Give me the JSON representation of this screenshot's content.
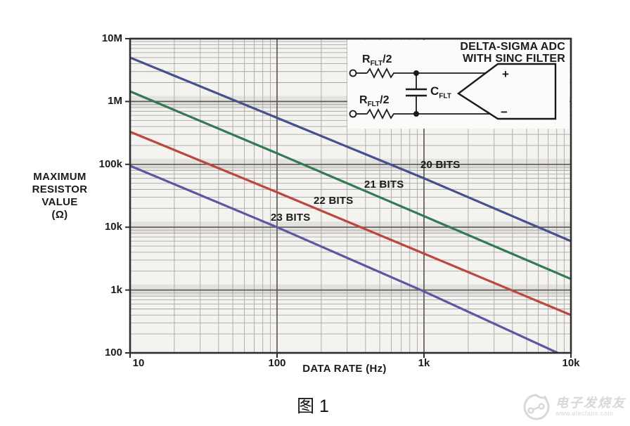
{
  "figure": {
    "caption": "图 1"
  },
  "chart_data": {
    "type": "line",
    "title": "",
    "xlabel": "DATA RATE (Hz)",
    "ylabel": "MAXIMUM RESISTOR VALUE (Ω)",
    "ylabel_lines": [
      "MAXIMUM",
      "RESISTOR",
      "VALUE",
      "(Ω)"
    ],
    "x_scale": "log",
    "y_scale": "log",
    "xlim": [
      10,
      10000
    ],
    "ylim": [
      100,
      10000000
    ],
    "grid": "log major + minor, both axes",
    "legend_position": "labels on curves",
    "x_ticks": [
      {
        "value": 10,
        "label": "10",
        "dx": 12
      },
      {
        "value": 100,
        "label": "100",
        "dx": 0
      },
      {
        "value": 1000,
        "label": "1k",
        "dx": 0
      },
      {
        "value": 10000,
        "label": "10k",
        "dx": 0
      }
    ],
    "y_ticks": [
      {
        "value": 10000000,
        "label": "10M"
      },
      {
        "value": 1000000,
        "label": "1M"
      },
      {
        "value": 100000,
        "label": "100k"
      },
      {
        "value": 10000,
        "label": "10k"
      },
      {
        "value": 1000,
        "label": "1k"
      },
      {
        "value": 100,
        "label": "100"
      }
    ],
    "x": [
      10,
      100,
      1000,
      10000
    ],
    "series": [
      {
        "name": "20 BITS",
        "color": "#46508e",
        "values": [
          5000000,
          550000,
          60000,
          6000
        ]
      },
      {
        "name": "21 BITS",
        "color": "#357952",
        "values": [
          1450000,
          150000,
          15000,
          1500
        ]
      },
      {
        "name": "22 BITS",
        "color": "#bc4740",
        "values": [
          330000,
          36000,
          3800,
          400
        ]
      },
      {
        "name": "23 BITS",
        "color": "#5d57a3",
        "values": [
          95000,
          10000,
          950,
          80
        ]
      }
    ]
  },
  "inset": {
    "title_line1": "DELTA-SIGMA ADC",
    "title_line2": "WITH SINC FILTER",
    "r_top": {
      "base": "R",
      "sub": "FLT",
      "suffix": "/2"
    },
    "r_bottom": {
      "base": "R",
      "sub": "FLT",
      "suffix": "/2"
    },
    "cap": {
      "base": "C",
      "sub": "FLT"
    },
    "plus": "+",
    "minus": "−"
  },
  "watermark": {
    "brand": "电子发烧友",
    "url": "www.elecfans.com"
  },
  "colors": {
    "curve_20bits": "#46508e",
    "curve_21bits": "#357952",
    "curve_22bits": "#bc4740",
    "curve_23bits": "#5d57a3",
    "grid_minor": "#a9a7a4",
    "grid_major": "#5d5a55",
    "axis_border": "#2e2e2e",
    "plot_background": "#f4f3f0",
    "text": "#1b1b1b",
    "watermark": "#d9d8d4"
  }
}
